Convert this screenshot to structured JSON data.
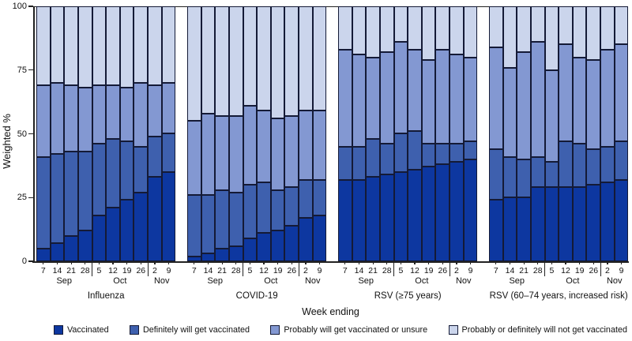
{
  "figure": {
    "ylabel": "Weighted %",
    "xlabel": "Week ending"
  },
  "legend": {
    "items": [
      {
        "label": "Vaccinated",
        "color": "#0d37a0"
      },
      {
        "label": "Definitely will get vaccinated",
        "color": "#3e60ae"
      },
      {
        "label": "Probably will get vaccinated or unsure",
        "color": "#8398d2"
      },
      {
        "label": "Probably or definitely will not get vaccinated",
        "color": "#cbd5ec"
      }
    ],
    "border_color": "#141a36"
  },
  "chart_data": {
    "type": "bar",
    "stacked": true,
    "title": "",
    "ylabel": "Weighted %",
    "xlabel": "Week ending",
    "ylim": [
      0,
      100
    ],
    "yticks": [
      0,
      25,
      50,
      75,
      100
    ],
    "grid": false,
    "legend_position": "bottom",
    "categories": [
      "7",
      "14",
      "21",
      "28",
      "5",
      "12",
      "19",
      "26",
      "2",
      "9"
    ],
    "month_groups": [
      {
        "label": "Sep",
        "bars": 4
      },
      {
        "label": "Oct",
        "bars": 4
      },
      {
        "label": "Nov",
        "bars": 2
      }
    ],
    "series_names": [
      "Vaccinated",
      "Definitely will get vaccinated",
      "Probably will get vaccinated or unsure",
      "Probably or definitely will not get vaccinated"
    ],
    "series_colors": [
      "#0d37a0",
      "#3e60ae",
      "#8398d2",
      "#cbd5ec"
    ],
    "panels": [
      {
        "label": "Influenza",
        "values": [
          [
            5,
            36,
            28,
            31
          ],
          [
            7,
            35,
            28,
            30
          ],
          [
            10,
            33,
            26,
            31
          ],
          [
            12,
            31,
            25,
            32
          ],
          [
            18,
            28,
            23,
            31
          ],
          [
            21,
            27,
            21,
            31
          ],
          [
            24,
            23,
            21,
            32
          ],
          [
            27,
            18,
            25,
            30
          ],
          [
            33,
            16,
            20,
            31
          ],
          [
            35,
            15,
            20,
            30
          ]
        ]
      },
      {
        "label": "COVID-19",
        "values": [
          [
            2,
            24,
            29,
            45
          ],
          [
            3,
            23,
            32,
            42
          ],
          [
            5,
            23,
            29,
            43
          ],
          [
            6,
            21,
            30,
            43
          ],
          [
            9,
            21,
            31,
            39
          ],
          [
            11,
            20,
            28,
            41
          ],
          [
            12,
            16,
            28,
            44
          ],
          [
            14,
            15,
            28,
            43
          ],
          [
            17,
            15,
            27,
            41
          ],
          [
            18,
            14,
            27,
            41
          ]
        ]
      },
      {
        "label": "RSV (≥75 years)",
        "values": [
          [
            32,
            13,
            38,
            17
          ],
          [
            32,
            13,
            36,
            19
          ],
          [
            33,
            15,
            32,
            20
          ],
          [
            34,
            12,
            36,
            18
          ],
          [
            35,
            15,
            36,
            14
          ],
          [
            36,
            15,
            32,
            17
          ],
          [
            37,
            9,
            33,
            21
          ],
          [
            38,
            8,
            37,
            17
          ],
          [
            39,
            7,
            35,
            19
          ],
          [
            40,
            7,
            33,
            20
          ]
        ]
      },
      {
        "label": "RSV (60–74 years, increased risk)",
        "values": [
          [
            24,
            20,
            40,
            16
          ],
          [
            25,
            16,
            35,
            24
          ],
          [
            25,
            15,
            42,
            18
          ],
          [
            29,
            12,
            45,
            14
          ],
          [
            29,
            10,
            36,
            25
          ],
          [
            29,
            18,
            38,
            15
          ],
          [
            29,
            17,
            34,
            20
          ],
          [
            30,
            14,
            35,
            21
          ],
          [
            31,
            14,
            38,
            17
          ],
          [
            32,
            15,
            38,
            15
          ]
        ]
      }
    ]
  }
}
